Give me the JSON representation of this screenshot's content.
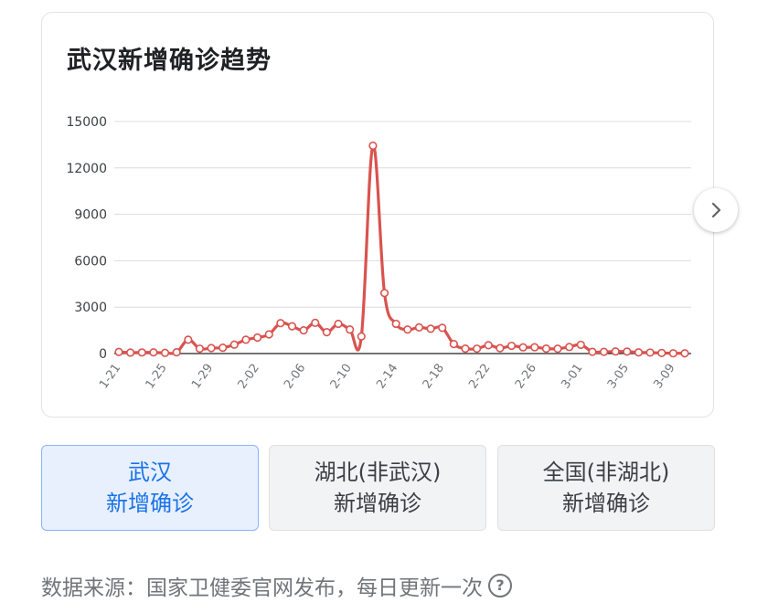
{
  "title": "武汉新增确诊趋势",
  "tabs": [
    {
      "line1": "武汉",
      "line2": "新增确诊",
      "active": true
    },
    {
      "line1": "湖北(非武汉)",
      "line2": "新增确诊",
      "active": false
    },
    {
      "line1": "全国(非湖北)",
      "line2": "新增确诊",
      "active": false
    }
  ],
  "source": {
    "text": "数据来源：国家卫健委官网发布，每日更新一次",
    "help_icon": "?"
  },
  "colors": {
    "line": "#d9534f",
    "grid": "#dadce0",
    "axis": "#202124",
    "tick": "#70757a",
    "active_tab": "#1a73e8"
  },
  "chart_data": {
    "type": "line",
    "title": "武汉新增确诊趋势",
    "xlabel": "",
    "ylabel": "",
    "ylim": [
      0,
      15000
    ],
    "yticks": [
      0,
      3000,
      6000,
      9000,
      12000,
      15000
    ],
    "xtick_labels": [
      "1-21",
      "1-25",
      "1-29",
      "2-02",
      "2-06",
      "2-10",
      "2-14",
      "2-18",
      "2-22",
      "2-26",
      "3-01",
      "3-05",
      "3-09"
    ],
    "grid": true,
    "x": [
      "1-21",
      "1-22",
      "1-23",
      "1-24",
      "1-25",
      "1-26",
      "1-27",
      "1-28",
      "1-29",
      "1-30",
      "1-31",
      "2-01",
      "2-02",
      "2-03",
      "2-04",
      "2-05",
      "2-06",
      "2-07",
      "2-08",
      "2-09",
      "2-10",
      "2-11",
      "2-12",
      "2-13",
      "2-14",
      "2-15",
      "2-16",
      "2-17",
      "2-18",
      "2-19",
      "2-20",
      "2-21",
      "2-22",
      "2-23",
      "2-24",
      "2-25",
      "2-26",
      "2-27",
      "2-28",
      "2-29",
      "3-01",
      "3-02",
      "3-03",
      "3-04",
      "3-05",
      "3-06",
      "3-07",
      "3-08",
      "3-09",
      "3-10"
    ],
    "series": [
      {
        "values": [
          105,
          62,
          70,
          77,
          46,
          80,
          892,
          315,
          356,
          378,
          576,
          894,
          1033,
          1242,
          1967,
          1766,
          1501,
          1985,
          1379,
          1920,
          1552,
          1104,
          13436,
          3910,
          1923,
          1548,
          1690,
          1600,
          1660,
          615,
          319,
          314,
          541,
          348,
          499,
          401,
          409,
          318,
          313,
          423,
          565,
          114,
          114,
          131,
          126,
          74,
          64,
          36,
          17,
          13
        ]
      }
    ]
  }
}
